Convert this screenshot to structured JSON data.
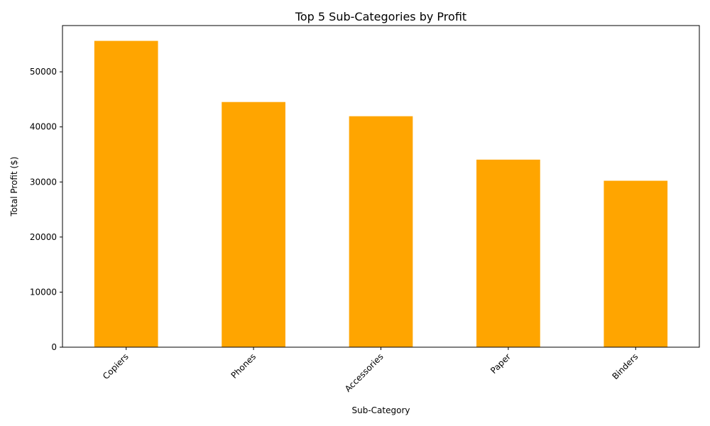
{
  "chart_data": {
    "type": "bar",
    "title": "Top 5 Sub-Categories by Profit",
    "xlabel": "Sub-Category",
    "ylabel": "Total Profit ($)",
    "categories": [
      "Copiers",
      "Phones",
      "Accessories",
      "Paper",
      "Binders"
    ],
    "values": [
      55618,
      44516,
      41937,
      34054,
      30222
    ],
    "ylim": [
      0,
      58399
    ],
    "yticks": [
      0,
      10000,
      20000,
      30000,
      40000,
      50000
    ],
    "ytick_labels": [
      "0",
      "10000",
      "20000",
      "30000",
      "40000",
      "50000"
    ],
    "bar_color": "#ffa500",
    "grid": false,
    "legend": "none",
    "xtick_rotation": "45 degrees"
  }
}
